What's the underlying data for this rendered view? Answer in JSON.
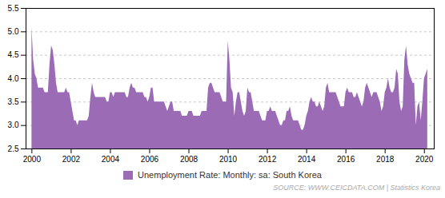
{
  "chart_data": {
    "type": "area",
    "caption": "SOURCE: WWW.CEICDATA.COM | Statistics Korea",
    "legend": "bottom",
    "grid": true,
    "xlim": [
      1999.7,
      2020.5
    ],
    "xticks": [
      2000,
      2002,
      2004,
      2006,
      2008,
      2010,
      2012,
      2014,
      2016,
      2018,
      2020
    ],
    "ylim": [
      2.5,
      5.5
    ],
    "yticks": [
      2.5,
      {
        "value": 3.0,
        "label": "3.0"
      },
      3.5,
      {
        "value": 4.0,
        "label": "4.0"
      },
      4.5,
      {
        "value": 5.0,
        "label": "5.0"
      },
      5.5
    ],
    "x": [
      2000,
      2000.0833333333333,
      2000.1666666666667,
      2000.25,
      2000.3333333333333,
      2000.4166666666667,
      2000.5,
      2000.5833333333333,
      2000.6666666666667,
      2000.75,
      2000.8333333333333,
      2000.9166666666667,
      2001,
      2001.0833333333333,
      2001.1666666666667,
      2001.25,
      2001.3333333333333,
      2001.4166666666667,
      2001.5,
      2001.5833333333333,
      2001.6666666666667,
      2001.75,
      2001.8333333333333,
      2001.9166666666667,
      2002,
      2002.0833333333333,
      2002.1666666666667,
      2002.25,
      2002.3333333333333,
      2002.4166666666667,
      2002.5,
      2002.5833333333333,
      2002.6666666666667,
      2002.75,
      2002.8333333333333,
      2002.9166666666667,
      2003,
      2003.0833333333333,
      2003.1666666666667,
      2003.25,
      2003.3333333333333,
      2003.4166666666667,
      2003.5,
      2003.5833333333333,
      2003.6666666666667,
      2003.75,
      2003.8333333333333,
      2003.9166666666667,
      2004,
      2004.0833333333333,
      2004.1666666666667,
      2004.25,
      2004.3333333333333,
      2004.4166666666667,
      2004.5,
      2004.5833333333333,
      2004.6666666666667,
      2004.75,
      2004.8333333333333,
      2004.9166666666667,
      2005,
      2005.0833333333333,
      2005.1666666666667,
      2005.25,
      2005.3333333333333,
      2005.4166666666667,
      2005.5,
      2005.5833333333333,
      2005.6666666666667,
      2005.75,
      2005.8333333333333,
      2005.9166666666667,
      2006,
      2006.0833333333333,
      2006.1666666666667,
      2006.25,
      2006.3333333333333,
      2006.4166666666667,
      2006.5,
      2006.5833333333333,
      2006.6666666666667,
      2006.75,
      2006.8333333333333,
      2006.9166666666667,
      2007,
      2007.0833333333333,
      2007.1666666666667,
      2007.25,
      2007.3333333333333,
      2007.4166666666667,
      2007.5,
      2007.5833333333333,
      2007.6666666666667,
      2007.75,
      2007.8333333333333,
      2007.9166666666667,
      2008,
      2008.0833333333333,
      2008.1666666666667,
      2008.25,
      2008.3333333333333,
      2008.4166666666667,
      2008.5,
      2008.5833333333333,
      2008.6666666666667,
      2008.75,
      2008.8333333333333,
      2008.9166666666667,
      2009,
      2009.0833333333333,
      2009.1666666666667,
      2009.25,
      2009.3333333333333,
      2009.4166666666667,
      2009.5,
      2009.5833333333333,
      2009.6666666666667,
      2009.75,
      2009.8333333333333,
      2009.9166666666667,
      2010,
      2010.0833333333333,
      2010.1666666666667,
      2010.25,
      2010.3333333333333,
      2010.4166666666667,
      2010.5,
      2010.5833333333333,
      2010.6666666666667,
      2010.75,
      2010.8333333333333,
      2010.9166666666667,
      2011,
      2011.0833333333333,
      2011.1666666666667,
      2011.25,
      2011.3333333333333,
      2011.4166666666667,
      2011.5,
      2011.5833333333333,
      2011.6666666666667,
      2011.75,
      2011.8333333333333,
      2011.9166666666667,
      2012,
      2012.0833333333333,
      2012.1666666666667,
      2012.25,
      2012.3333333333333,
      2012.4166666666667,
      2012.5,
      2012.5833333333333,
      2012.6666666666667,
      2012.75,
      2012.8333333333333,
      2012.9166666666667,
      2013,
      2013.0833333333333,
      2013.1666666666667,
      2013.25,
      2013.3333333333333,
      2013.4166666666667,
      2013.5,
      2013.5833333333333,
      2013.6666666666667,
      2013.75,
      2013.8333333333333,
      2013.9166666666667,
      2014,
      2014.0833333333333,
      2014.1666666666667,
      2014.25,
      2014.3333333333333,
      2014.4166666666667,
      2014.5,
      2014.5833333333333,
      2014.6666666666667,
      2014.75,
      2014.8333333333333,
      2014.9166666666667,
      2015,
      2015.0833333333333,
      2015.1666666666667,
      2015.25,
      2015.3333333333333,
      2015.4166666666667,
      2015.5,
      2015.5833333333333,
      2015.6666666666667,
      2015.75,
      2015.8333333333333,
      2015.9166666666667,
      2016,
      2016.0833333333333,
      2016.1666666666667,
      2016.25,
      2016.3333333333333,
      2016.4166666666667,
      2016.5,
      2016.5833333333333,
      2016.6666666666667,
      2016.75,
      2016.8333333333333,
      2016.9166666666667,
      2017,
      2017.0833333333333,
      2017.1666666666667,
      2017.25,
      2017.3333333333333,
      2017.4166666666667,
      2017.5,
      2017.5833333333333,
      2017.6666666666667,
      2017.75,
      2017.8333333333333,
      2017.9166666666667,
      2018,
      2018.0833333333333,
      2018.1666666666667,
      2018.25,
      2018.3333333333333,
      2018.4166666666667,
      2018.5,
      2018.5833333333333,
      2018.6666666666667,
      2018.75,
      2018.8333333333333,
      2018.9166666666667,
      2019,
      2019.0833333333333,
      2019.1666666666667,
      2019.25,
      2019.3333333333333,
      2019.4166666666667,
      2019.5,
      2019.5833333333333,
      2019.6666666666667,
      2019.75,
      2019.8333333333333,
      2019.9166666666667,
      2020,
      2020.0833333333333,
      2020.1666666666667
    ],
    "series": [
      {
        "name": "Unemployment Rate: Monthly: sa: South Korea",
        "color": "#9B6BB5",
        "values": [
          5.1,
          4.4,
          4.1,
          4.0,
          3.8,
          3.8,
          3.8,
          3.8,
          3.7,
          3.7,
          3.7,
          4.3,
          4.7,
          4.6,
          4.3,
          3.9,
          3.7,
          3.7,
          3.7,
          3.7,
          3.7,
          3.8,
          3.7,
          3.7,
          3.5,
          3.3,
          3.1,
          3.1,
          3.0,
          3.1,
          3.1,
          3.1,
          3.1,
          3.1,
          3.1,
          3.2,
          3.6,
          3.9,
          3.7,
          3.6,
          3.6,
          3.6,
          3.6,
          3.6,
          3.6,
          3.6,
          3.5,
          3.5,
          3.7,
          3.7,
          3.6,
          3.7,
          3.7,
          3.7,
          3.7,
          3.7,
          3.7,
          3.7,
          3.6,
          3.6,
          3.8,
          3.9,
          3.8,
          3.8,
          3.7,
          3.7,
          3.7,
          3.7,
          3.7,
          3.6,
          3.6,
          3.5,
          3.6,
          3.8,
          3.8,
          3.5,
          3.5,
          3.5,
          3.5,
          3.5,
          3.5,
          3.5,
          3.4,
          3.3,
          3.4,
          3.5,
          3.5,
          3.3,
          3.3,
          3.3,
          3.3,
          3.3,
          3.2,
          3.2,
          3.2,
          3.2,
          3.3,
          3.3,
          3.3,
          3.2,
          3.2,
          3.2,
          3.2,
          3.2,
          3.3,
          3.3,
          3.3,
          3.3,
          3.8,
          3.9,
          3.9,
          3.8,
          3.7,
          3.7,
          3.7,
          3.7,
          3.6,
          3.5,
          3.5,
          3.5,
          4.8,
          4.4,
          3.8,
          3.7,
          3.2,
          3.5,
          3.7,
          3.7,
          3.5,
          3.3,
          3.2,
          3.3,
          3.8,
          3.7,
          3.7,
          3.5,
          3.3,
          3.3,
          3.3,
          3.3,
          3.2,
          3.1,
          3.1,
          3.1,
          3.3,
          3.3,
          3.4,
          3.3,
          3.3,
          3.3,
          3.2,
          3.1,
          3.0,
          3.0,
          3.1,
          3.1,
          3.3,
          3.3,
          3.4,
          3.2,
          3.1,
          3.1,
          3.1,
          3.1,
          3.0,
          2.9,
          2.9,
          3.0,
          3.2,
          3.3,
          3.5,
          3.6,
          3.5,
          3.5,
          3.4,
          3.4,
          3.5,
          3.4,
          3.3,
          3.4,
          3.8,
          3.9,
          3.7,
          3.7,
          3.7,
          3.7,
          3.7,
          3.6,
          3.5,
          3.4,
          3.4,
          3.4,
          3.7,
          3.8,
          3.7,
          3.7,
          3.7,
          3.6,
          3.6,
          3.7,
          3.6,
          3.5,
          3.4,
          3.5,
          3.8,
          3.9,
          3.8,
          3.7,
          3.6,
          3.7,
          3.7,
          3.7,
          3.6,
          3.5,
          3.3,
          3.4,
          3.7,
          3.8,
          4.0,
          3.8,
          3.7,
          3.7,
          3.8,
          4.2,
          4.1,
          3.5,
          3.3,
          3.4,
          4.4,
          4.7,
          4.3,
          4.1,
          4.0,
          3.9,
          3.9,
          3.0,
          3.4,
          3.5,
          3.1,
          3.5,
          4.0,
          4.1,
          4.2
        ]
      }
    ]
  }
}
